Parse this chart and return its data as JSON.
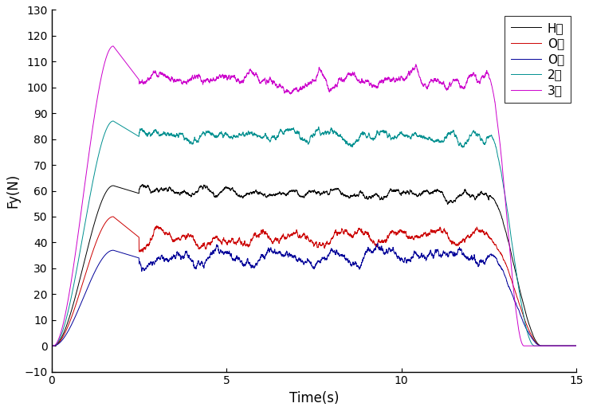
{
  "title": "",
  "xlabel": "Time(s)",
  "ylabel": "Fy(N)",
  "xlim": [
    0,
    15
  ],
  "ylim": [
    -10,
    130
  ],
  "yticks": [
    -10,
    0,
    10,
    20,
    30,
    40,
    50,
    60,
    70,
    80,
    90,
    100,
    110,
    120,
    130
  ],
  "xticks": [
    0,
    5,
    10,
    15
  ],
  "lines": [
    {
      "label": "H사",
      "color": "#000000",
      "plateau": 59,
      "noise_scale": 1.2,
      "noise_freq": 0.3,
      "rise_end": 2.5,
      "fall_start": 12.5,
      "fall_end": 14.0,
      "peak": 62,
      "end_val": 0
    },
    {
      "label": "O사",
      "color": "#cc0000",
      "plateau": 42,
      "noise_scale": 2.0,
      "noise_freq": 0.5,
      "rise_end": 2.5,
      "fall_start": 12.5,
      "fall_end": 14.0,
      "peak": 50,
      "end_val": 0
    },
    {
      "label": "O사",
      "color": "#000099",
      "plateau": 34,
      "noise_scale": 2.0,
      "noise_freq": 0.5,
      "rise_end": 2.5,
      "fall_start": 12.5,
      "fall_end": 14.0,
      "peak": 37,
      "end_val": 0
    },
    {
      "label": "2번",
      "color": "#009090",
      "plateau": 81,
      "noise_scale": 1.5,
      "noise_freq": 0.3,
      "rise_end": 2.5,
      "fall_start": 12.5,
      "fall_end": 13.8,
      "peak": 87,
      "end_val": 0
    },
    {
      "label": "3번",
      "color": "#cc00cc",
      "plateau": 103,
      "noise_scale": 1.8,
      "noise_freq": 0.3,
      "rise_end": 2.5,
      "fall_start": 12.5,
      "fall_end": 13.5,
      "peak": 116,
      "end_val": 0
    }
  ],
  "figsize": [
    7.39,
    5.16
  ],
  "dpi": 100
}
